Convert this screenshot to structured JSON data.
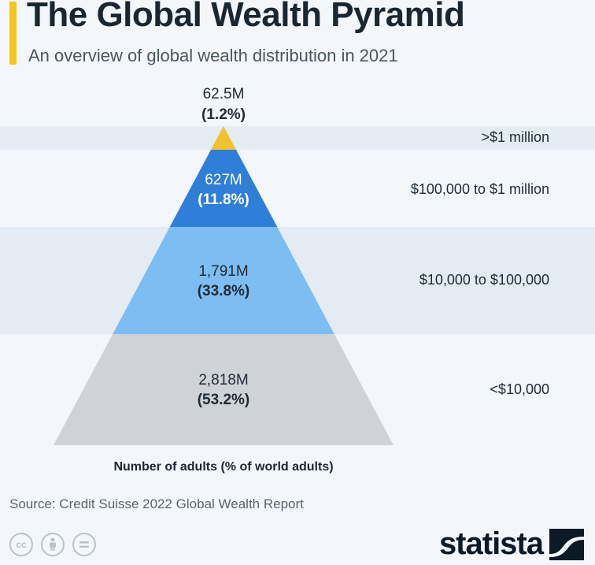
{
  "header": {
    "title": "The Global Wealth Pyramid",
    "subtitle": "An overview of global wealth distribution in 2021",
    "accent_color": "#f5c518"
  },
  "chart_data": {
    "type": "pyramid",
    "title": "The Global Wealth Pyramid",
    "subtitle": "An overview of global wealth distribution in 2021",
    "xlabel": "Number of adults (% of world adults)",
    "tiers": [
      {
        "category": ">$1 million",
        "value_label": "62.5M",
        "percent_label": "(1.2%)",
        "value_millions": 62.5,
        "percent": 1.2,
        "color": "#f2c12e"
      },
      {
        "category": "$100,000 to $1 million",
        "value_label": "627M",
        "percent_label": "(11.8%)",
        "value_millions": 627,
        "percent": 11.8,
        "color": "#2f7fd8"
      },
      {
        "category": "$10,000 to $100,000",
        "value_label": "1,791M",
        "percent_label": "(33.8%)",
        "value_millions": 1791,
        "percent": 33.8,
        "color": "#7dbdf2"
      },
      {
        "category": "<$10,000",
        "value_label": "2,818M",
        "percent_label": "(53.2%)",
        "value_millions": 2818,
        "percent": 53.2,
        "color": "#cfd2d6"
      }
    ],
    "band_color": "#e5ebf3"
  },
  "footer": {
    "source": "Source: Credit Suisse 2022 Global Wealth Report",
    "license_icons": [
      "cc-icon",
      "person-icon",
      "equals-icon"
    ],
    "logo_text": "statista",
    "logo_icon": "statista-wave-icon"
  }
}
